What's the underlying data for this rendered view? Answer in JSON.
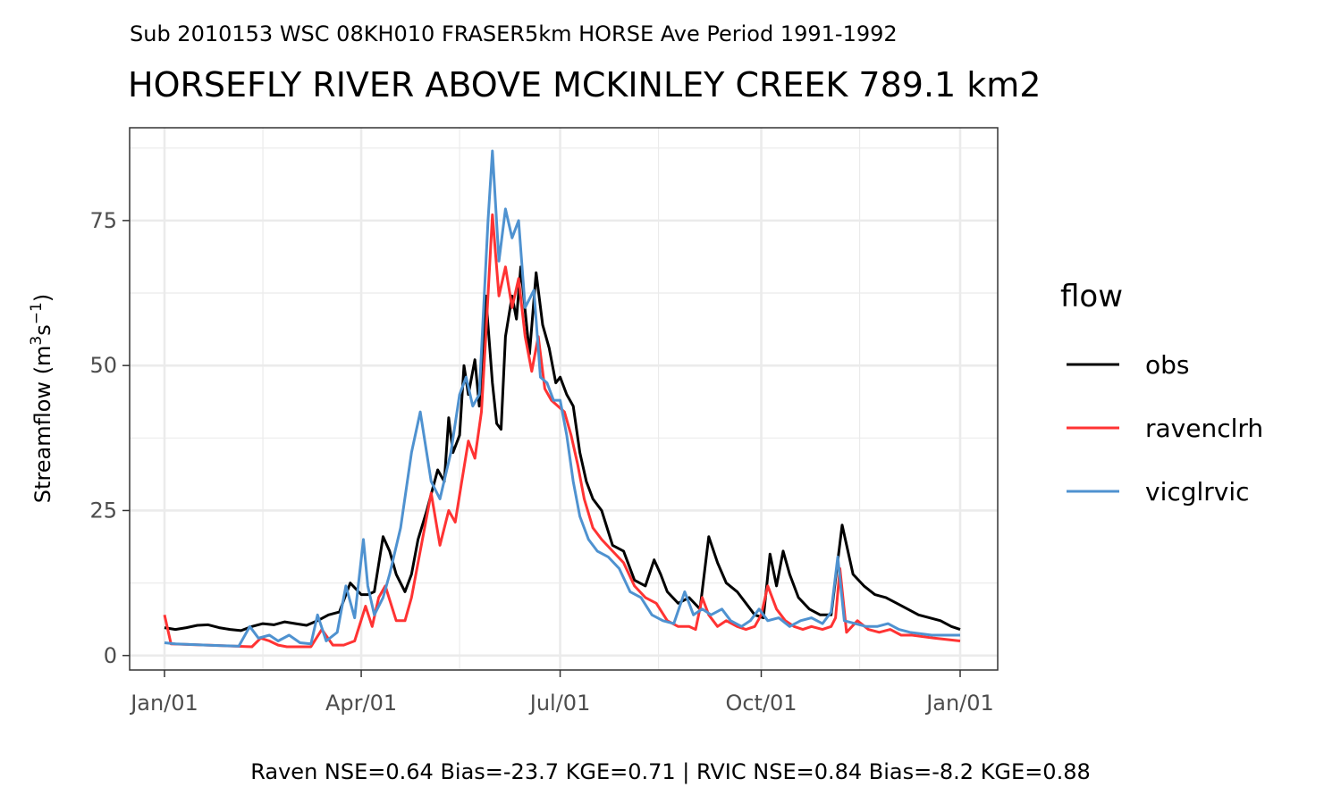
{
  "chart_data": {
    "type": "line",
    "subtitle": "Sub 2010153 WSC 08KH010 FRASER5km HORSE Ave Period 1991-1992",
    "title": "HORSEFLY RIVER ABOVE MCKINLEY CREEK 789.1 km2",
    "ylabel": "Streamflow (m3s−1)",
    "ylabel_parts": {
      "pre": "Streamflow (m",
      "sup1": "3",
      "mid": "s",
      "sup2": "−1",
      "post": ")"
    },
    "caption": "Raven NSE=0.64 Bias=-23.7 KGE=0.71 | RVIC NSE=0.84 Bias=-8.2 KGE=0.88",
    "xlim": [
      "01-01",
      "12-31"
    ],
    "ylim": [
      -2.5,
      91
    ],
    "x_ticks": [
      {
        "date": "01-01",
        "label": "Jan/01"
      },
      {
        "date": "04-01",
        "label": "Apr/01"
      },
      {
        "date": "07-01",
        "label": "Jul/01"
      },
      {
        "date": "10-01",
        "label": "Oct/01"
      },
      {
        "date": "12-31",
        "label": "Jan/01"
      }
    ],
    "x_minor_ticks": [
      "02-15",
      "05-16",
      "08-15",
      "11-15"
    ],
    "y_ticks": [
      0,
      25,
      50,
      75
    ],
    "grid": true,
    "legend": {
      "title": "flow",
      "placement": "right"
    },
    "series": [
      {
        "name": "obs",
        "color": "#000000",
        "points": [
          [
            "01-01",
            4.8
          ],
          [
            "01-06",
            4.5
          ],
          [
            "01-11",
            4.8
          ],
          [
            "01-16",
            5.2
          ],
          [
            "01-21",
            5.3
          ],
          [
            "01-26",
            4.8
          ],
          [
            "01-31",
            4.5
          ],
          [
            "02-05",
            4.3
          ],
          [
            "02-10",
            5.0
          ],
          [
            "02-15",
            5.5
          ],
          [
            "02-20",
            5.3
          ],
          [
            "02-25",
            5.8
          ],
          [
            "03-02",
            5.5
          ],
          [
            "03-07",
            5.2
          ],
          [
            "03-12",
            6.0
          ],
          [
            "03-17",
            7.0
          ],
          [
            "03-22",
            7.5
          ],
          [
            "03-27",
            12.5
          ],
          [
            "04-01",
            10.5
          ],
          [
            "04-04",
            10.5
          ],
          [
            "04-07",
            11.0
          ],
          [
            "04-11",
            20.5
          ],
          [
            "04-14",
            18.0
          ],
          [
            "04-17",
            14.0
          ],
          [
            "04-21",
            11.0
          ],
          [
            "04-24",
            14.0
          ],
          [
            "04-27",
            20.0
          ],
          [
            "05-01",
            25.0
          ],
          [
            "05-06",
            32.0
          ],
          [
            "05-09",
            30.0
          ],
          [
            "05-11",
            41.0
          ],
          [
            "05-13",
            35.0
          ],
          [
            "05-16",
            38.0
          ],
          [
            "05-18",
            50.0
          ],
          [
            "05-20",
            45.0
          ],
          [
            "05-23",
            51.0
          ],
          [
            "05-25",
            43.0
          ],
          [
            "05-28",
            62.0
          ],
          [
            "05-31",
            47.0
          ],
          [
            "06-02",
            40.0
          ],
          [
            "06-04",
            39.0
          ],
          [
            "06-06",
            55.0
          ],
          [
            "06-09",
            62.0
          ],
          [
            "06-11",
            58.0
          ],
          [
            "06-13",
            67.0
          ],
          [
            "06-17",
            52.0
          ],
          [
            "06-20",
            66.0
          ],
          [
            "06-23",
            57.0
          ],
          [
            "06-26",
            53.0
          ],
          [
            "06-29",
            47.0
          ],
          [
            "07-01",
            48.0
          ],
          [
            "07-04",
            45.0
          ],
          [
            "07-07",
            43.0
          ],
          [
            "07-10",
            35.0
          ],
          [
            "07-13",
            30.0
          ],
          [
            "07-16",
            27.0
          ],
          [
            "07-20",
            25.0
          ],
          [
            "07-25",
            19.0
          ],
          [
            "07-30",
            18.0
          ],
          [
            "08-04",
            13.0
          ],
          [
            "08-09",
            12.0
          ],
          [
            "08-13",
            16.5
          ],
          [
            "08-16",
            14.0
          ],
          [
            "08-19",
            11.0
          ],
          [
            "08-24",
            9.0
          ],
          [
            "08-29",
            10.0
          ],
          [
            "09-03",
            8.0
          ],
          [
            "09-07",
            20.5
          ],
          [
            "09-11",
            16.0
          ],
          [
            "09-15",
            12.5
          ],
          [
            "09-20",
            11.0
          ],
          [
            "09-24",
            9.0
          ],
          [
            "09-28",
            7.0
          ],
          [
            "10-02",
            6.5
          ],
          [
            "10-05",
            17.5
          ],
          [
            "10-08",
            12.0
          ],
          [
            "10-11",
            18.0
          ],
          [
            "10-14",
            14.0
          ],
          [
            "10-18",
            10.0
          ],
          [
            "10-23",
            8.0
          ],
          [
            "10-28",
            7.0
          ],
          [
            "11-02",
            7.0
          ],
          [
            "11-07",
            22.5
          ],
          [
            "11-12",
            14.0
          ],
          [
            "11-17",
            12.0
          ],
          [
            "11-22",
            10.5
          ],
          [
            "11-27",
            10.0
          ],
          [
            "12-02",
            9.0
          ],
          [
            "12-07",
            8.0
          ],
          [
            "12-12",
            7.0
          ],
          [
            "12-17",
            6.5
          ],
          [
            "12-22",
            6.0
          ],
          [
            "12-27",
            5.0
          ],
          [
            "12-31",
            4.5
          ]
        ]
      },
      {
        "name": "ravenclrh",
        "color": "#ff3333",
        "points": [
          [
            "01-01",
            7.0
          ],
          [
            "01-04",
            2.0
          ],
          [
            "01-20",
            1.8
          ],
          [
            "02-10",
            1.5
          ],
          [
            "02-14",
            3.0
          ],
          [
            "02-18",
            2.5
          ],
          [
            "02-22",
            1.8
          ],
          [
            "02-26",
            1.5
          ],
          [
            "03-04",
            1.5
          ],
          [
            "03-09",
            1.5
          ],
          [
            "03-14",
            4.5
          ],
          [
            "03-19",
            1.8
          ],
          [
            "03-24",
            1.8
          ],
          [
            "03-29",
            2.5
          ],
          [
            "04-03",
            8.5
          ],
          [
            "04-06",
            5.0
          ],
          [
            "04-09",
            10.0
          ],
          [
            "04-12",
            12.0
          ],
          [
            "04-17",
            6.0
          ],
          [
            "04-21",
            6.0
          ],
          [
            "04-24",
            10.0
          ],
          [
            "04-29",
            20.0
          ],
          [
            "05-03",
            28.0
          ],
          [
            "05-07",
            19.0
          ],
          [
            "05-11",
            25.0
          ],
          [
            "05-14",
            23.0
          ],
          [
            "05-17",
            30.0
          ],
          [
            "05-20",
            37.0
          ],
          [
            "05-23",
            34.0
          ],
          [
            "05-26",
            42.0
          ],
          [
            "05-28",
            55.0
          ],
          [
            "05-31",
            76.0
          ],
          [
            "06-03",
            62.0
          ],
          [
            "06-06",
            67.0
          ],
          [
            "06-09",
            60.0
          ],
          [
            "06-12",
            65.0
          ],
          [
            "06-15",
            55.0
          ],
          [
            "06-18",
            49.0
          ],
          [
            "06-21",
            55.0
          ],
          [
            "06-24",
            46.0
          ],
          [
            "06-27",
            44.0
          ],
          [
            "06-30",
            43.0
          ],
          [
            "07-03",
            42.0
          ],
          [
            "07-06",
            38.0
          ],
          [
            "07-09",
            33.0
          ],
          [
            "07-12",
            27.0
          ],
          [
            "07-16",
            22.0
          ],
          [
            "07-20",
            20.0
          ],
          [
            "07-25",
            18.0
          ],
          [
            "07-30",
            16.0
          ],
          [
            "08-04",
            12.0
          ],
          [
            "08-09",
            10.0
          ],
          [
            "08-14",
            9.0
          ],
          [
            "08-19",
            6.0
          ],
          [
            "08-24",
            5.0
          ],
          [
            "08-29",
            5.0
          ],
          [
            "09-01",
            4.5
          ],
          [
            "09-04",
            10.0
          ],
          [
            "09-07",
            7.0
          ],
          [
            "09-11",
            5.0
          ],
          [
            "09-15",
            6.0
          ],
          [
            "09-20",
            5.0
          ],
          [
            "09-24",
            4.5
          ],
          [
            "09-28",
            5.0
          ],
          [
            "10-01",
            7.0
          ],
          [
            "10-04",
            12.0
          ],
          [
            "10-08",
            8.0
          ],
          [
            "10-12",
            6.0
          ],
          [
            "10-16",
            5.0
          ],
          [
            "10-20",
            4.5
          ],
          [
            "10-24",
            5.0
          ],
          [
            "10-29",
            4.5
          ],
          [
            "11-02",
            5.0
          ],
          [
            "11-04",
            6.5
          ],
          [
            "11-06",
            15.0
          ],
          [
            "11-09",
            4.0
          ],
          [
            "11-14",
            6.0
          ],
          [
            "11-19",
            4.5
          ],
          [
            "11-24",
            4.0
          ],
          [
            "11-29",
            4.5
          ],
          [
            "12-04",
            3.5
          ],
          [
            "12-09",
            3.5
          ],
          [
            "12-19",
            3.0
          ],
          [
            "12-31",
            2.5
          ]
        ]
      },
      {
        "name": "vicglrvic",
        "color": "#4f92d0",
        "points": [
          [
            "01-01",
            2.2
          ],
          [
            "01-06",
            2.0
          ],
          [
            "01-20",
            1.8
          ],
          [
            "02-04",
            1.6
          ],
          [
            "02-09",
            5.0
          ],
          [
            "02-13",
            3.0
          ],
          [
            "02-18",
            3.5
          ],
          [
            "02-22",
            2.5
          ],
          [
            "02-27",
            3.5
          ],
          [
            "03-04",
            2.2
          ],
          [
            "03-09",
            2.0
          ],
          [
            "03-12",
            7.0
          ],
          [
            "03-16",
            2.5
          ],
          [
            "03-21",
            4.0
          ],
          [
            "03-25",
            12.0
          ],
          [
            "03-29",
            6.5
          ],
          [
            "04-02",
            20.0
          ],
          [
            "04-04",
            12.0
          ],
          [
            "04-07",
            7.0
          ],
          [
            "04-11",
            10.0
          ],
          [
            "04-14",
            14.0
          ],
          [
            "04-19",
            22.0
          ],
          [
            "04-24",
            35.0
          ],
          [
            "04-28",
            42.0
          ],
          [
            "05-03",
            30.0
          ],
          [
            "05-07",
            27.0
          ],
          [
            "05-12",
            35.0
          ],
          [
            "05-16",
            45.0
          ],
          [
            "05-19",
            48.0
          ],
          [
            "05-22",
            43.0
          ],
          [
            "05-25",
            45.0
          ],
          [
            "05-27",
            60.0
          ],
          [
            "05-29",
            75.0
          ],
          [
            "05-31",
            87.0
          ],
          [
            "06-03",
            68.0
          ],
          [
            "06-06",
            77.0
          ],
          [
            "06-09",
            72.0
          ],
          [
            "06-12",
            75.0
          ],
          [
            "06-15",
            60.0
          ],
          [
            "06-19",
            63.0
          ],
          [
            "06-22",
            48.0
          ],
          [
            "06-25",
            47.0
          ],
          [
            "06-28",
            44.0
          ],
          [
            "07-01",
            44.0
          ],
          [
            "07-04",
            38.0
          ],
          [
            "07-07",
            30.0
          ],
          [
            "07-10",
            24.0
          ],
          [
            "07-14",
            20.0
          ],
          [
            "07-18",
            18.0
          ],
          [
            "07-23",
            17.0
          ],
          [
            "07-28",
            15.0
          ],
          [
            "08-02",
            11.0
          ],
          [
            "08-07",
            10.0
          ],
          [
            "08-12",
            7.0
          ],
          [
            "08-17",
            6.0
          ],
          [
            "08-22",
            5.5
          ],
          [
            "08-27",
            11.0
          ],
          [
            "08-31",
            7.0
          ],
          [
            "09-04",
            8.0
          ],
          [
            "09-08",
            7.0
          ],
          [
            "09-13",
            8.0
          ],
          [
            "09-17",
            6.0
          ],
          [
            "09-22",
            5.0
          ],
          [
            "09-26",
            6.0
          ],
          [
            "09-30",
            8.0
          ],
          [
            "10-04",
            6.0
          ],
          [
            "10-09",
            6.5
          ],
          [
            "10-14",
            5.0
          ],
          [
            "10-19",
            6.0
          ],
          [
            "10-24",
            6.5
          ],
          [
            "10-29",
            5.5
          ],
          [
            "11-02",
            7.5
          ],
          [
            "11-05",
            17.0
          ],
          [
            "11-08",
            6.0
          ],
          [
            "11-13",
            5.5
          ],
          [
            "11-18",
            5.0
          ],
          [
            "11-23",
            5.0
          ],
          [
            "11-28",
            5.5
          ],
          [
            "12-03",
            4.5
          ],
          [
            "12-08",
            4.0
          ],
          [
            "12-18",
            3.5
          ],
          [
            "12-31",
            3.5
          ]
        ]
      }
    ]
  }
}
